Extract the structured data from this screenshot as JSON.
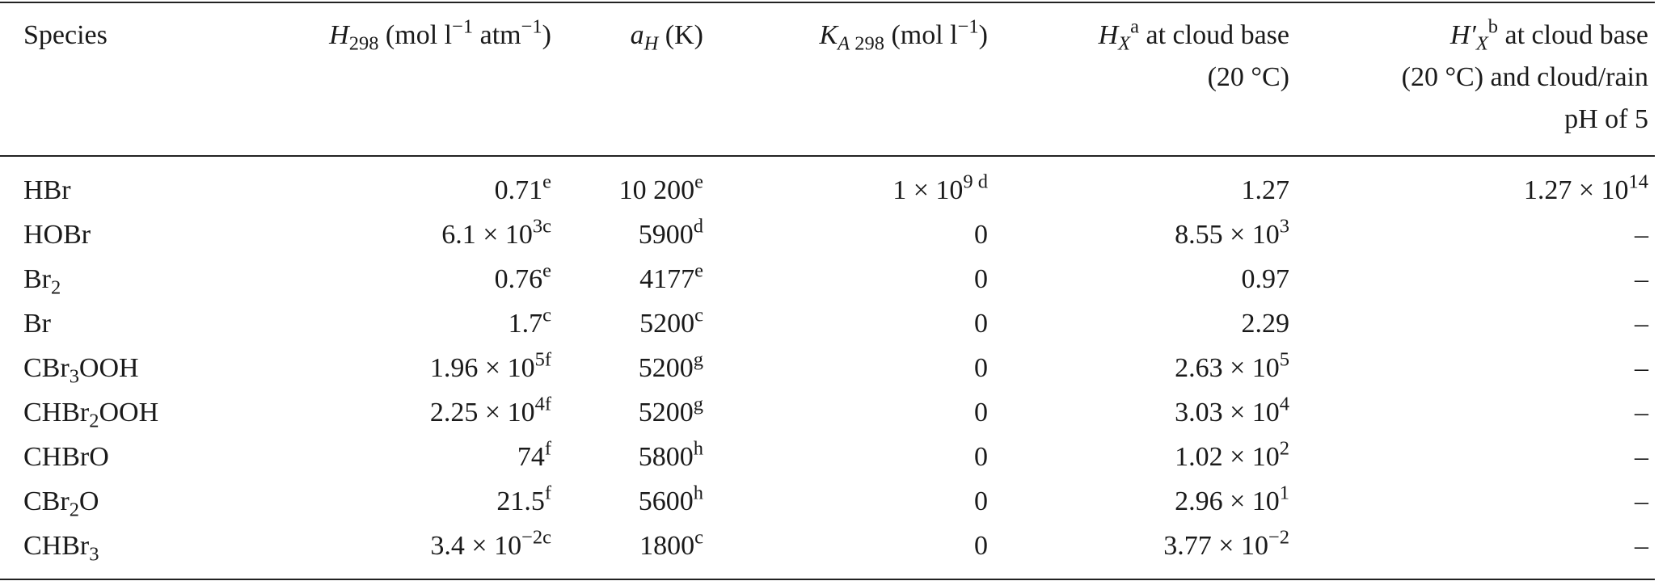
{
  "table": {
    "header": [
      [
        "Species"
      ],
      [
        {
          "i": "H"
        },
        {
          "sub": "298"
        },
        " (mol l",
        {
          "sup": "−1"
        },
        " atm",
        {
          "sup": "−1"
        },
        ")"
      ],
      [
        {
          "i": "a"
        },
        {
          "isub": "H"
        },
        " (K)"
      ],
      [
        {
          "i": "K"
        },
        {
          "isub": "A"
        },
        {
          "sub": " 298"
        },
        " (mol l",
        {
          "sup": "−1"
        },
        ")"
      ],
      [
        {
          "i": "H"
        },
        {
          "isub": "X"
        },
        {
          "sup": "a"
        },
        " at cloud base\n(20 °C)"
      ],
      [
        {
          "i": "H′"
        },
        {
          "isub": "X"
        },
        {
          "sup": "b"
        },
        " at cloud base\n(20 °C) and cloud/rain\npH of 5"
      ]
    ],
    "rows": [
      [
        [
          "HBr"
        ],
        [
          "0.71",
          {
            "sup": "e"
          }
        ],
        [
          "10 200",
          {
            "sup": "e"
          }
        ],
        [
          "1 × 10",
          {
            "sup": "9 d"
          }
        ],
        [
          "1.27"
        ],
        [
          "1.27 × 10",
          {
            "sup": "14"
          }
        ]
      ],
      [
        [
          "HOBr"
        ],
        [
          "6.1 × 10",
          {
            "sup": "3c"
          }
        ],
        [
          "5900",
          {
            "sup": "d"
          }
        ],
        [
          "0"
        ],
        [
          "8.55 × 10",
          {
            "sup": "3"
          }
        ],
        [
          "–"
        ]
      ],
      [
        [
          "Br",
          {
            "sub": "2"
          }
        ],
        [
          "0.76",
          {
            "sup": "e"
          }
        ],
        [
          "4177",
          {
            "sup": "e"
          }
        ],
        [
          "0"
        ],
        [
          "0.97"
        ],
        [
          "–"
        ]
      ],
      [
        [
          "Br"
        ],
        [
          "1.7",
          {
            "sup": "c"
          }
        ],
        [
          "5200",
          {
            "sup": "c"
          }
        ],
        [
          "0"
        ],
        [
          "2.29"
        ],
        [
          "–"
        ]
      ],
      [
        [
          "CBr",
          {
            "sub": "3"
          },
          "OOH"
        ],
        [
          "1.96 × 10",
          {
            "sup": "5f"
          }
        ],
        [
          "5200",
          {
            "sup": "g"
          }
        ],
        [
          "0"
        ],
        [
          "2.63 × 10",
          {
            "sup": "5"
          }
        ],
        [
          "–"
        ]
      ],
      [
        [
          "CHBr",
          {
            "sub": "2"
          },
          "OOH"
        ],
        [
          "2.25 × 10",
          {
            "sup": "4f"
          }
        ],
        [
          "5200",
          {
            "sup": "g"
          }
        ],
        [
          "0"
        ],
        [
          "3.03 × 10",
          {
            "sup": "4"
          }
        ],
        [
          "–"
        ]
      ],
      [
        [
          "CHBrO"
        ],
        [
          "74",
          {
            "sup": "f"
          }
        ],
        [
          "5800",
          {
            "sup": "h"
          }
        ],
        [
          "0"
        ],
        [
          "1.02 × 10",
          {
            "sup": "2"
          }
        ],
        [
          "–"
        ]
      ],
      [
        [
          "CBr",
          {
            "sub": "2"
          },
          "O"
        ],
        [
          "21.5",
          {
            "sup": "f"
          }
        ],
        [
          "5600",
          {
            "sup": "h"
          }
        ],
        [
          "0"
        ],
        [
          "2.96 × 10",
          {
            "sup": "1"
          }
        ],
        [
          "–"
        ]
      ],
      [
        [
          "CHBr",
          {
            "sub": "3"
          }
        ],
        [
          "3.4 × 10",
          {
            "sup": "−2c"
          }
        ],
        [
          "1800",
          {
            "sup": "c"
          }
        ],
        [
          "0"
        ],
        [
          "3.77 × 10",
          {
            "sup": "−2"
          }
        ],
        [
          "–"
        ]
      ]
    ]
  }
}
